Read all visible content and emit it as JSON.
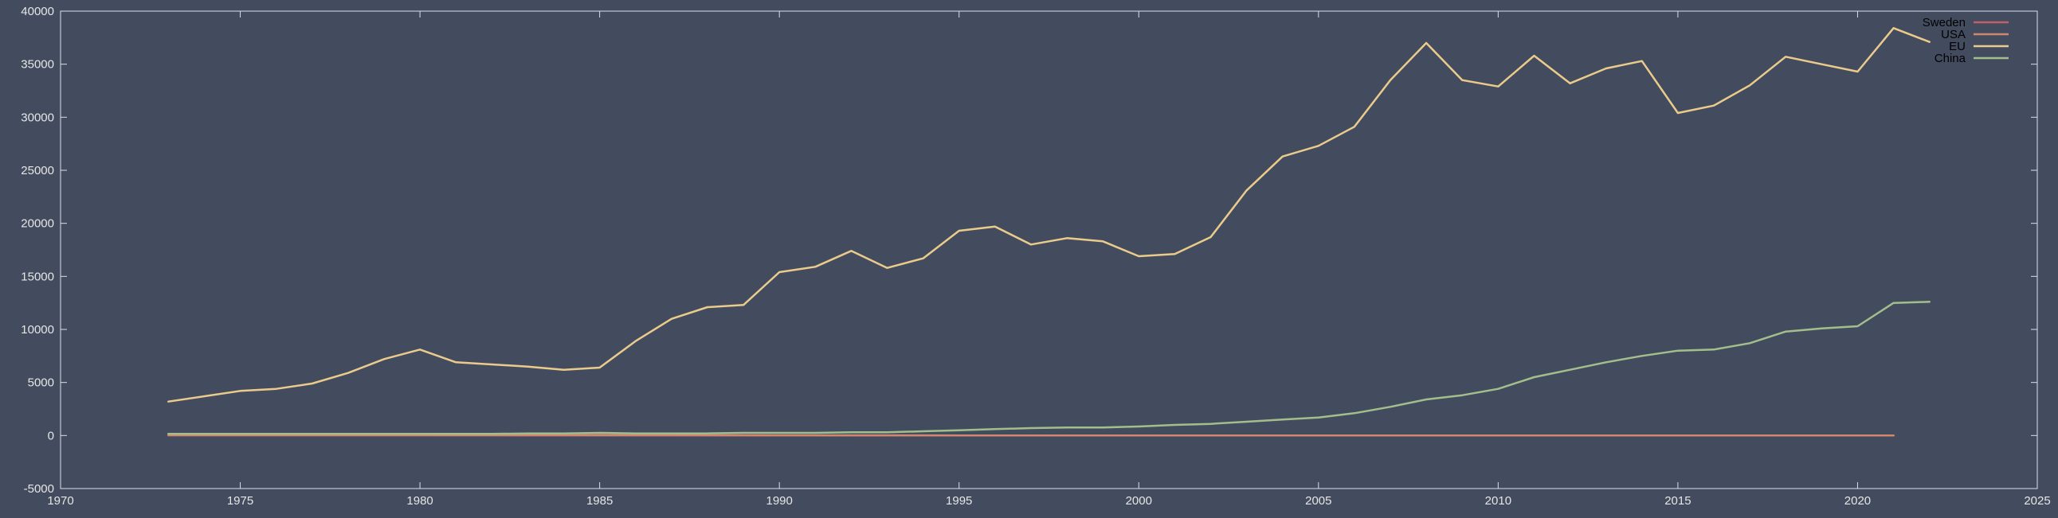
{
  "chart_data": {
    "type": "line",
    "title": "",
    "xlabel": "",
    "ylabel": "",
    "xlim": [
      1970,
      2025
    ],
    "ylim": [
      -5000,
      40000
    ],
    "xticks": [
      1970,
      1975,
      1980,
      1985,
      1990,
      1995,
      2000,
      2005,
      2010,
      2015,
      2020,
      2025
    ],
    "yticks": [
      -5000,
      0,
      5000,
      10000,
      15000,
      20000,
      25000,
      30000,
      35000,
      40000
    ],
    "grid": false,
    "legend_position": "top-right",
    "series": [
      {
        "name": "Sweden",
        "color": "#bf616a",
        "x": [
          1973,
          1975,
          1980,
          1985,
          1990,
          1995,
          2000,
          2005,
          2010,
          2015,
          2020,
          2021
        ],
        "y": [
          0,
          0,
          0,
          0,
          0,
          0,
          0,
          0,
          0,
          0,
          0,
          0
        ]
      },
      {
        "name": "USA",
        "color": "#d08770",
        "x": [
          1973,
          1975,
          1980,
          1985,
          1990,
          1995,
          2000,
          2005,
          2010,
          2015,
          2020,
          2021
        ],
        "y": [
          50,
          50,
          40,
          30,
          20,
          10,
          10,
          10,
          10,
          10,
          10,
          10
        ]
      },
      {
        "name": "EU",
        "color": "#ebcb8b",
        "x": [
          1973,
          1974,
          1975,
          1976,
          1977,
          1978,
          1979,
          1980,
          1981,
          1982,
          1983,
          1984,
          1985,
          1986,
          1987,
          1988,
          1989,
          1990,
          1991,
          1992,
          1993,
          1994,
          1995,
          1996,
          1997,
          1998,
          1999,
          2000,
          2001,
          2002,
          2003,
          2004,
          2005,
          2006,
          2007,
          2008,
          2009,
          2010,
          2011,
          2012,
          2013,
          2014,
          2015,
          2016,
          2017,
          2018,
          2019,
          2020,
          2021,
          2022
        ],
        "y": [
          3200,
          3700,
          4200,
          4400,
          4900,
          5900,
          7200,
          8100,
          6900,
          6700,
          6500,
          6200,
          6400,
          8900,
          11000,
          12100,
          12300,
          15400,
          15900,
          17400,
          15800,
          16700,
          19300,
          19700,
          18000,
          18600,
          18300,
          16900,
          17100,
          18700,
          23100,
          26300,
          27300,
          29100,
          33500,
          37000,
          33500,
          32900,
          35800,
          33200,
          34600,
          35300,
          30400,
          31100,
          33000,
          35700,
          35000,
          34300,
          38400,
          37100
        ]
      },
      {
        "name": "China",
        "color": "#a3be8c",
        "x": [
          1973,
          1974,
          1975,
          1976,
          1977,
          1978,
          1979,
          1980,
          1981,
          1982,
          1983,
          1984,
          1985,
          1986,
          1987,
          1988,
          1989,
          1990,
          1991,
          1992,
          1993,
          1994,
          1995,
          1996,
          1997,
          1998,
          1999,
          2000,
          2001,
          2002,
          2003,
          2004,
          2005,
          2006,
          2007,
          2008,
          2009,
          2010,
          2011,
          2012,
          2013,
          2014,
          2015,
          2016,
          2017,
          2018,
          2019,
          2020,
          2021,
          2022
        ],
        "y": [
          150,
          150,
          150,
          150,
          150,
          150,
          150,
          150,
          150,
          150,
          200,
          200,
          250,
          200,
          200,
          200,
          250,
          250,
          250,
          300,
          300,
          400,
          500,
          600,
          700,
          750,
          750,
          850,
          1000,
          1100,
          1300,
          1500,
          1700,
          2100,
          2700,
          3400,
          3800,
          4400,
          5500,
          6200,
          6900,
          7500,
          8000,
          8100,
          8700,
          9800,
          10100,
          10300,
          12500,
          12600
        ]
      }
    ]
  }
}
